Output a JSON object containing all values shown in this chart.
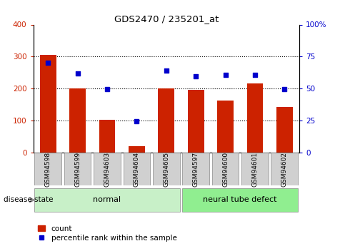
{
  "title": "GDS2470 / 235201_at",
  "categories": [
    "GSM94598",
    "GSM94599",
    "GSM94603",
    "GSM94604",
    "GSM94605",
    "GSM94597",
    "GSM94600",
    "GSM94601",
    "GSM94602"
  ],
  "bar_values": [
    305,
    200,
    103,
    20,
    200,
    195,
    163,
    215,
    143
  ],
  "dot_values_left": [
    280,
    248,
    198,
    98,
    257,
    238,
    242,
    242,
    198
  ],
  "bar_color": "#cc2200",
  "dot_color": "#0000cc",
  "left_ylim": [
    0,
    400
  ],
  "right_ylim": [
    0,
    100
  ],
  "left_yticks": [
    0,
    100,
    200,
    300,
    400
  ],
  "right_yticks": [
    0,
    25,
    50,
    75,
    100
  ],
  "right_yticklabels": [
    "0",
    "25",
    "50",
    "75",
    "100%"
  ],
  "grid_values": [
    100,
    200,
    300
  ],
  "normal_indices": [
    0,
    1,
    2,
    3,
    4
  ],
  "defect_indices": [
    5,
    6,
    7,
    8
  ],
  "normal_label": "normal",
  "defect_label": "neural tube defect",
  "disease_state_label": "disease state",
  "legend_bar_label": "count",
  "legend_dot_label": "percentile rank within the sample",
  "normal_color": "#c8f0c8",
  "defect_color": "#90ee90",
  "tick_bg_color": "#d0d0d0",
  "arrow_color": "#909090",
  "bg_color": "#ffffff"
}
